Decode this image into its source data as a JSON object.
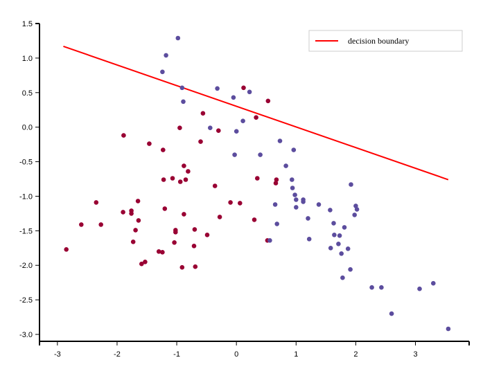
{
  "chart_data": {
    "type": "scatter",
    "xlim": [
      -3.3,
      3.9
    ],
    "ylim": [
      -3.1,
      1.5
    ],
    "x_ticks": [
      -3,
      -2,
      -1,
      0,
      1,
      2,
      3
    ],
    "x_tick_labels": [
      "-3",
      "-2",
      "-1",
      "0",
      "1",
      "2",
      "3"
    ],
    "y_ticks": [
      1.5,
      1.0,
      0.5,
      0.0,
      -0.5,
      -1.0,
      -1.5,
      -2.0,
      -2.5,
      -3.0
    ],
    "y_tick_labels": [
      "1.5",
      "1.0",
      "0.5",
      "0.0",
      "-0.5",
      "-1.0",
      "-1.5",
      "-2.0",
      "-2.5",
      "-3.0"
    ],
    "grid": false,
    "legend_position": "top-right",
    "colors": {
      "class_a": "#990033",
      "class_b": "#5c4d9e",
      "boundary": "#ff0000"
    },
    "decision_boundary": {
      "label": "decision boundary",
      "x": [
        -2.9,
        3.55
      ],
      "y": [
        1.17,
        -0.76
      ]
    },
    "series": [
      {
        "color": "#990033",
        "points": [
          [
            -2.85,
            -1.77
          ],
          [
            -2.6,
            -1.41
          ],
          [
            -2.35,
            -1.09
          ],
          [
            -2.27,
            -1.41
          ],
          [
            -1.89,
            -0.12
          ],
          [
            -1.9,
            -1.23
          ],
          [
            -1.76,
            -1.21
          ],
          [
            -1.76,
            -1.25
          ],
          [
            -1.73,
            -1.66
          ],
          [
            -1.69,
            -1.49
          ],
          [
            -1.64,
            -1.35
          ],
          [
            -1.65,
            -1.07
          ],
          [
            -1.59,
            -1.98
          ],
          [
            -1.53,
            -1.95
          ],
          [
            -1.46,
            -0.24
          ],
          [
            -1.3,
            -1.8
          ],
          [
            -1.24,
            -1.81
          ],
          [
            -1.23,
            -0.33
          ],
          [
            -1.22,
            -0.76
          ],
          [
            -1.2,
            -1.18
          ],
          [
            -1.07,
            -0.74
          ],
          [
            -1.04,
            -1.67
          ],
          [
            -1.02,
            -1.49
          ],
          [
            -1.02,
            -1.52
          ],
          [
            -0.95,
            -0.01
          ],
          [
            -0.94,
            -0.79
          ],
          [
            -0.91,
            -2.03
          ],
          [
            -0.88,
            -0.56
          ],
          [
            -0.88,
            -1.26
          ],
          [
            -0.85,
            -0.76
          ],
          [
            -0.81,
            -0.64
          ],
          [
            -0.71,
            -1.72
          ],
          [
            -0.7,
            -1.48
          ],
          [
            -0.69,
            -2.02
          ],
          [
            -0.6,
            -0.21
          ],
          [
            -0.56,
            0.2
          ],
          [
            -0.49,
            -1.56
          ],
          [
            -0.36,
            -0.85
          ],
          [
            -0.3,
            -0.05
          ],
          [
            -0.28,
            -1.3
          ],
          [
            -0.1,
            -1.09
          ],
          [
            0.06,
            -1.1
          ],
          [
            0.12,
            0.57
          ],
          [
            0.3,
            -1.34
          ],
          [
            0.33,
            0.14
          ],
          [
            0.35,
            -0.74
          ],
          [
            0.52,
            -1.64
          ],
          [
            0.53,
            0.38
          ],
          [
            0.66,
            -0.81
          ],
          [
            0.67,
            -0.76
          ]
        ]
      },
      {
        "color": "#5c4d9e",
        "points": [
          [
            -1.24,
            0.8
          ],
          [
            -1.18,
            1.04
          ],
          [
            -0.98,
            1.29
          ],
          [
            -0.91,
            0.57
          ],
          [
            -0.89,
            0.37
          ],
          [
            -0.44,
            -0.01
          ],
          [
            -0.32,
            0.56
          ],
          [
            -0.05,
            0.43
          ],
          [
            -0.03,
            -0.4
          ],
          [
            0.0,
            -0.06
          ],
          [
            0.11,
            0.09
          ],
          [
            0.22,
            0.51
          ],
          [
            0.4,
            -0.4
          ],
          [
            0.56,
            -1.64
          ],
          [
            0.65,
            -1.12
          ],
          [
            0.68,
            -1.4
          ],
          [
            0.73,
            -0.2
          ],
          [
            0.83,
            -0.56
          ],
          [
            0.93,
            -0.76
          ],
          [
            0.94,
            -0.88
          ],
          [
            0.96,
            -0.33
          ],
          [
            0.98,
            -0.98
          ],
          [
            1.0,
            -1.05
          ],
          [
            1.0,
            -1.16
          ],
          [
            1.12,
            -1.05
          ],
          [
            1.12,
            -1.08
          ],
          [
            1.2,
            -1.32
          ],
          [
            1.22,
            -1.62
          ],
          [
            1.38,
            -1.12
          ],
          [
            1.57,
            -1.2
          ],
          [
            1.58,
            -1.75
          ],
          [
            1.63,
            -1.39
          ],
          [
            1.64,
            -1.56
          ],
          [
            1.71,
            -1.69
          ],
          [
            1.73,
            -1.57
          ],
          [
            1.76,
            -1.83
          ],
          [
            1.78,
            -2.18
          ],
          [
            1.81,
            -1.45
          ],
          [
            1.87,
            -1.76
          ],
          [
            1.91,
            -2.06
          ],
          [
            1.92,
            -0.83
          ],
          [
            1.98,
            -1.27
          ],
          [
            2.0,
            -1.14
          ],
          [
            2.02,
            -1.19
          ],
          [
            2.27,
            -2.32
          ],
          [
            2.43,
            -2.32
          ],
          [
            2.6,
            -2.7
          ],
          [
            3.07,
            -2.34
          ],
          [
            3.3,
            -2.26
          ],
          [
            3.55,
            -2.92
          ]
        ]
      }
    ]
  }
}
